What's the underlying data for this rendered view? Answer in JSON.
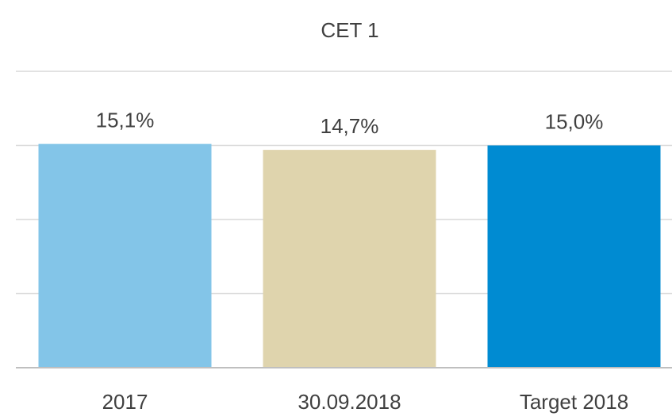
{
  "chart_data": {
    "type": "bar",
    "title": "CET 1",
    "categories": [
      "2017",
      "30.09.2018",
      "Target 2018"
    ],
    "values": [
      15.1,
      14.7,
      15.0
    ],
    "value_labels": [
      "15,1%",
      "14,7%",
      "15,0%"
    ],
    "colors": [
      "#83c5e8",
      "#dfd4ad",
      "#008bd2"
    ],
    "ylim": [
      0,
      20
    ],
    "yticks": [
      0,
      5,
      10,
      15,
      20
    ],
    "grid": true
  }
}
